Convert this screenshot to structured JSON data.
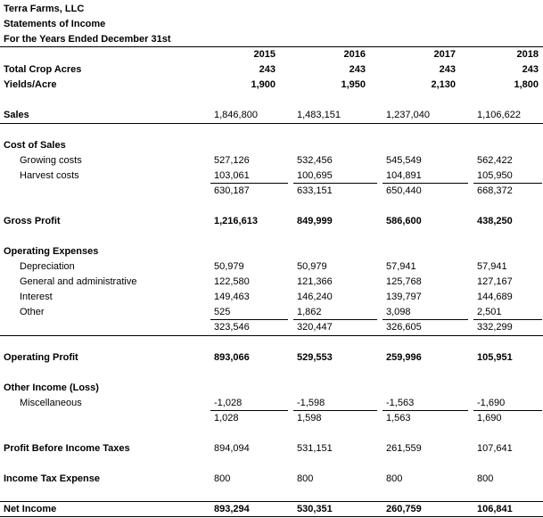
{
  "header": {
    "company": "Terra Farms, LLC",
    "statement": "Statements of Income",
    "period": "For the Years Ended December 31st"
  },
  "years": [
    "2015",
    "2016",
    "2017",
    "2018"
  ],
  "rows": [
    {
      "label": "Total Crop Acres",
      "values": [
        "243",
        "243",
        "243",
        "243"
      ]
    },
    {
      "label": "Yields/Acre",
      "values": [
        "1,900",
        "1,950",
        "2,130",
        "1,800"
      ]
    },
    {
      "label": "Sales",
      "values": [
        "1,846,800",
        "1,483,151",
        "1,237,040",
        "1,106,622"
      ]
    },
    {
      "label": "Cost of Sales"
    },
    {
      "label": "Growing costs",
      "values": [
        "527,126",
        "532,456",
        "545,549",
        "562,422"
      ]
    },
    {
      "label": "Harvest costs",
      "values": [
        "103,061",
        "100,695",
        "104,891",
        "105,950"
      ]
    },
    {
      "values": [
        "630,187",
        "633,151",
        "650,440",
        "668,372"
      ]
    },
    {
      "label": "Gross Profit",
      "values": [
        "1,216,613",
        "849,999",
        "586,600",
        "438,250"
      ]
    },
    {
      "label": "Operating Expenses"
    },
    {
      "label": "Depreciation",
      "values": [
        "50,979",
        "50,979",
        "57,941",
        "57,941"
      ]
    },
    {
      "label": "General and administrative",
      "values": [
        "122,580",
        "121,366",
        "125,768",
        "127,167"
      ]
    },
    {
      "label": "Interest",
      "values": [
        "149,463",
        "146,240",
        "139,797",
        "144,689"
      ]
    },
    {
      "label": "Other",
      "values": [
        "525",
        "1,862",
        "3,098",
        "2,501"
      ]
    },
    {
      "values": [
        "323,546",
        "320,447",
        "326,605",
        "332,299"
      ]
    },
    {
      "label": "Operating Profit",
      "values": [
        "893,066",
        "529,553",
        "259,996",
        "105,951"
      ]
    },
    {
      "label": "Other Income (Loss)"
    },
    {
      "label": "Miscellaneous",
      "values": [
        "-1,028",
        "-1,598",
        "-1,563",
        "-1,690"
      ]
    },
    {
      "values": [
        "1,028",
        "1,598",
        "1,563",
        "1,690"
      ]
    },
    {
      "label": "Profit Before Income Taxes",
      "values": [
        "894,094",
        "531,151",
        "261,559",
        "107,641"
      ]
    },
    {
      "label": "Income Tax Expense",
      "values": [
        "800",
        "800",
        "800",
        "800"
      ]
    },
    {
      "label": "Net Income",
      "values": [
        "893,294",
        "530,351",
        "260,759",
        "106,841"
      ]
    }
  ]
}
